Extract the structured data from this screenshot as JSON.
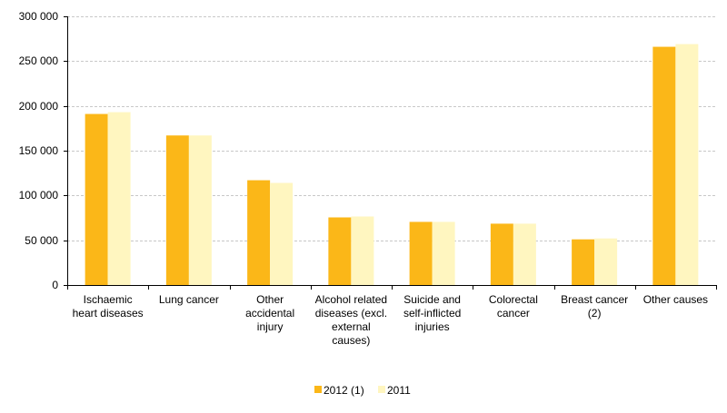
{
  "chart_data": {
    "type": "bar",
    "categories": [
      [
        "Ischaemic",
        "heart diseases"
      ],
      [
        "Lung cancer"
      ],
      [
        "Other",
        "accidental",
        "injury"
      ],
      [
        "Alcohol related",
        "diseases (excl.",
        "external",
        "causes)"
      ],
      [
        "Suicide and",
        "self-inflicted",
        "injuries"
      ],
      [
        "Colorectal",
        "cancer"
      ],
      [
        "Breast cancer",
        "(2)"
      ],
      [
        "Other causes"
      ]
    ],
    "series": [
      {
        "name": "2012 (1)",
        "color": "#FBB718",
        "values": [
          191000,
          167000,
          117000,
          75500,
          70500,
          68500,
          51000,
          266000
        ]
      },
      {
        "name": "2011",
        "color": "#FFF6C0",
        "values": [
          193000,
          167000,
          114000,
          76500,
          70500,
          68500,
          52000,
          269000
        ]
      }
    ],
    "ylim": [
      0,
      300000
    ],
    "yticks": [
      0,
      50000,
      100000,
      150000,
      200000,
      250000,
      300000
    ],
    "ytick_labels": [
      "0",
      "50 000",
      "100 000",
      "150 000",
      "200 000",
      "250 000",
      "300 000"
    ],
    "grid": true,
    "legend_position": "bottom-center"
  }
}
